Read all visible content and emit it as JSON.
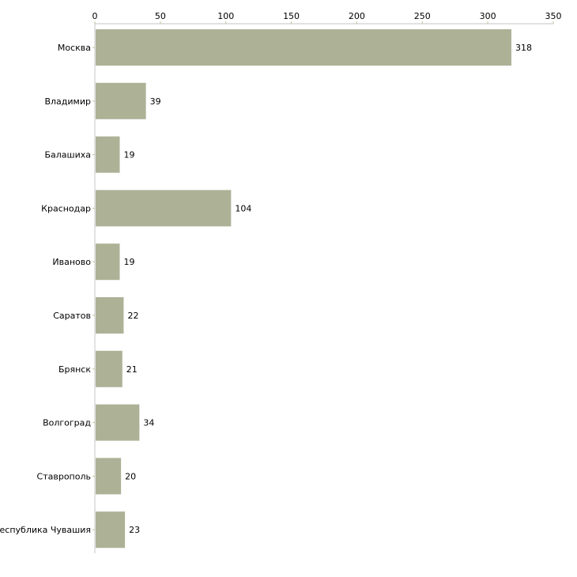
{
  "chart_data": {
    "type": "bar",
    "orientation": "horizontal",
    "title": "",
    "xlabel": "",
    "ylabel": "",
    "categories": [
      "Москва",
      "Владимир",
      "Балашиха",
      "Краснодар",
      "Иваново",
      "Саратов",
      "Брянск",
      "Волгоград",
      "Ставрополь",
      "Республика Чувашия"
    ],
    "values": [
      318,
      39,
      19,
      104,
      19,
      22,
      21,
      34,
      20,
      23
    ],
    "xlim": [
      0,
      350
    ],
    "xticks": [
      0,
      50,
      100,
      150,
      200,
      250,
      300,
      350
    ],
    "axis_position": "top",
    "grid": false,
    "data_labels": true,
    "colors": {
      "bar": "#adb297",
      "axis": "#c4c4c4",
      "tick": "#c2c29a",
      "text": "#000000"
    }
  }
}
